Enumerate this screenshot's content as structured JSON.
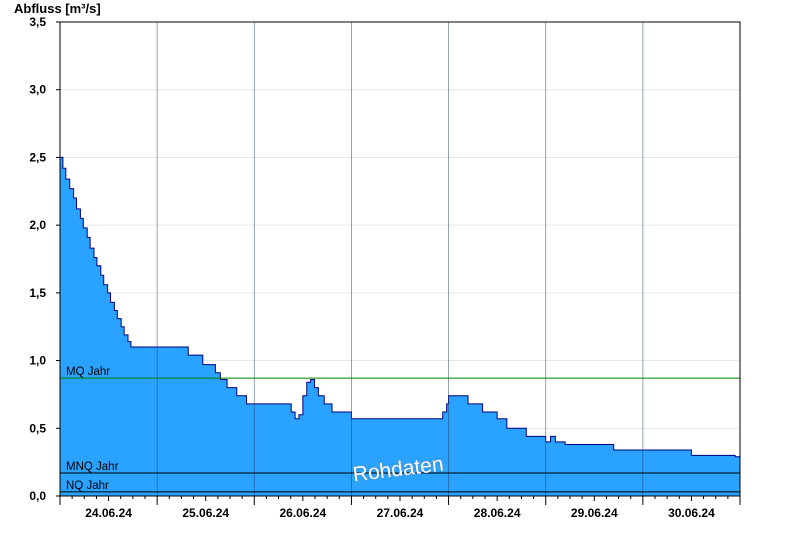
{
  "chart_data": {
    "type": "area",
    "ylabel": "Abfluss [m³/s]",
    "ylim": [
      0,
      3.5
    ],
    "xlim": [
      0,
      7
    ],
    "y_ticks": [
      "0,0",
      "0,5",
      "1,0",
      "1,5",
      "2,0",
      "2,5",
      "3,0",
      "3,5"
    ],
    "y_tick_values": [
      0,
      0.5,
      1.0,
      1.5,
      2.0,
      2.5,
      3.0,
      3.5
    ],
    "x_tick_labels": [
      "24.06.24",
      "25.06.24",
      "26.06.24",
      "27.06.24",
      "28.06.24",
      "29.06.24",
      "30.06.24"
    ],
    "grid": true,
    "colors": {
      "fill": "#29a3ff",
      "line": "#000080",
      "mq_line": "#008000",
      "ref_line": "#000000",
      "grid": "#e6e6e6"
    },
    "reference_lines": [
      {
        "name": "MQ Jahr",
        "value": 0.87
      },
      {
        "name": "MNQ Jahr",
        "value": 0.17
      },
      {
        "name": "NQ Jahr",
        "value": 0.03
      }
    ],
    "watermark": "Rohdaten",
    "series": [
      {
        "x": [
          0,
          0.03,
          0.06,
          0.1,
          0.14,
          0.17,
          0.21,
          0.24,
          0.28,
          0.31,
          0.35,
          0.38,
          0.42,
          0.45,
          0.49,
          0.52,
          0.56,
          0.59,
          0.63,
          0.66,
          0.7,
          0.73,
          0.77,
          0.8,
          0.84,
          0.87,
          0.92,
          0.95,
          1.0,
          1.2,
          1.32,
          1.47,
          1.6,
          1.65,
          1.72,
          1.82,
          1.92,
          2.05,
          2.35,
          2.38,
          2.42,
          2.46,
          2.5,
          2.54,
          2.58,
          2.62,
          2.66,
          2.72,
          2.8,
          2.9,
          3.0,
          3.1,
          3.5,
          3.6,
          3.9,
          3.94,
          3.98,
          4.0,
          4.1,
          4.2,
          4.3,
          4.35,
          4.4,
          4.45,
          4.5,
          4.6,
          4.7,
          4.8,
          4.9,
          5.0,
          5.05,
          5.1,
          5.15,
          5.2,
          5.3,
          5.5,
          5.7,
          6.0,
          6.5,
          6.9,
          6.95,
          7.0
        ],
        "y": [
          2.5,
          2.42,
          2.34,
          2.27,
          2.2,
          2.12,
          2.05,
          1.98,
          1.91,
          1.83,
          1.76,
          1.7,
          1.63,
          1.56,
          1.5,
          1.43,
          1.37,
          1.31,
          1.25,
          1.19,
          1.14,
          1.1,
          1.1,
          1.1,
          1.1,
          1.1,
          1.1,
          1.1,
          1.1,
          1.1,
          1.04,
          0.97,
          0.91,
          0.86,
          0.8,
          0.74,
          0.68,
          0.68,
          0.68,
          0.62,
          0.57,
          0.6,
          0.74,
          0.84,
          0.86,
          0.8,
          0.74,
          0.68,
          0.62,
          0.62,
          0.57,
          0.57,
          0.57,
          0.57,
          0.57,
          0.62,
          0.68,
          0.74,
          0.74,
          0.68,
          0.68,
          0.62,
          0.62,
          0.62,
          0.57,
          0.5,
          0.5,
          0.44,
          0.44,
          0.4,
          0.44,
          0.4,
          0.4,
          0.38,
          0.38,
          0.38,
          0.34,
          0.34,
          0.3,
          0.3,
          0.29,
          0.28
        ]
      }
    ]
  }
}
